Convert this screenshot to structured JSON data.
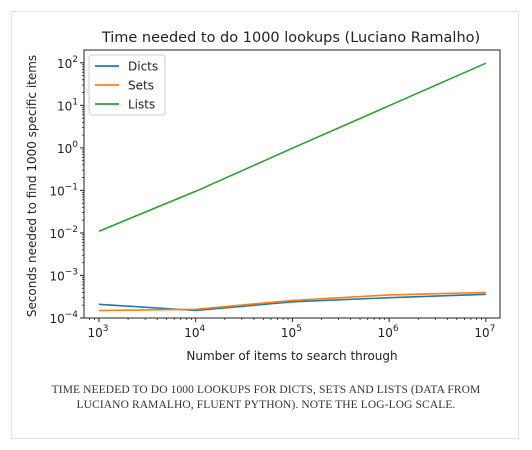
{
  "chart_data": {
    "type": "line",
    "title": "Time needed to do 1000 lookups (Luciano Ramalho)",
    "xlabel": "Number of items to search through",
    "ylabel": "Seconds needed to find 1000 specific items",
    "xscale": "log",
    "yscale": "log",
    "xlim": [
      700,
      14000000
    ],
    "ylim": [
      0.0001,
      200
    ],
    "x": [
      1000,
      10000,
      100000,
      1000000,
      10000000
    ],
    "x_ticks": [
      {
        "value": 1000,
        "base": "10",
        "exp": "3"
      },
      {
        "value": 10000,
        "base": "10",
        "exp": "4"
      },
      {
        "value": 100000,
        "base": "10",
        "exp": "5"
      },
      {
        "value": 1000000,
        "base": "10",
        "exp": "6"
      },
      {
        "value": 10000000,
        "base": "10",
        "exp": "7"
      }
    ],
    "y_ticks": [
      {
        "value": 0.0001,
        "base": "10",
        "exp": "−4"
      },
      {
        "value": 0.001,
        "base": "10",
        "exp": "−3"
      },
      {
        "value": 0.01,
        "base": "10",
        "exp": "−2"
      },
      {
        "value": 0.1,
        "base": "10",
        "exp": "−1"
      },
      {
        "value": 1,
        "base": "10",
        "exp": "0"
      },
      {
        "value": 10,
        "base": "10",
        "exp": "1"
      },
      {
        "value": 100,
        "base": "10",
        "exp": "2"
      }
    ],
    "series": [
      {
        "name": "Dicts",
        "color": "#1f77b4",
        "values": [
          0.00021,
          0.00015,
          0.00024,
          0.0003,
          0.00036
        ]
      },
      {
        "name": "Sets",
        "color": "#ff7f0e",
        "values": [
          0.00015,
          0.00016,
          0.00026,
          0.00035,
          0.0004
        ]
      },
      {
        "name": "Lists",
        "color": "#2ca02c",
        "values": [
          0.011,
          0.095,
          0.98,
          9.8,
          98
        ]
      }
    ],
    "legend_position": "upper-left",
    "grid": false
  },
  "caption": "TIME NEEDED TO DO 1000 LOOKUPS FOR DICTS, SETS AND LISTS (DATA FROM LUCIANO RAMALHO, FLUENT PYTHON). NOTE THE LOG-LOG SCALE."
}
